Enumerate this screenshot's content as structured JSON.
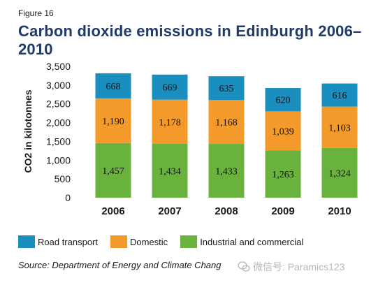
{
  "figure_label": "Figure 16",
  "chart_data": {
    "type": "bar",
    "stacked": true,
    "title": "Carbon dioxide emissions in Edinburgh 2006–2010",
    "ylabel": "CO2 in kilotonnes",
    "xlabel": "",
    "ylim": [
      0,
      3500
    ],
    "yticks": [
      0,
      500,
      1000,
      1500,
      2000,
      2500,
      3000,
      3500
    ],
    "ytick_labels": [
      "0",
      "500",
      "1,000",
      "1,500",
      "2,000",
      "2,500",
      "3,000",
      "3,500"
    ],
    "categories": [
      "2006",
      "2007",
      "2008",
      "2009",
      "2010"
    ],
    "series": [
      {
        "name": "Industrial and commercial",
        "color": "#6ab23e",
        "values": [
          1457,
          1434,
          1433,
          1263,
          1324
        ],
        "labels": [
          "1,457",
          "1,434",
          "1,433",
          "1,263",
          "1,324"
        ]
      },
      {
        "name": "Domestic",
        "color": "#f39a2a",
        "values": [
          1190,
          1178,
          1168,
          1039,
          1103
        ],
        "labels": [
          "1,190",
          "1,178",
          "1,168",
          "1,039",
          "1,103"
        ]
      },
      {
        "name": "Road transport",
        "color": "#1a8fbf",
        "values": [
          668,
          669,
          635,
          620,
          616
        ],
        "labels": [
          "668",
          "669",
          "635",
          "620",
          "616"
        ]
      }
    ],
    "legend_position": "bottom",
    "grid": false
  },
  "legend": {
    "road_transport": "Road transport",
    "domestic": "Domestic",
    "industrial": "Industrial and commercial"
  },
  "source": "Source: Department of Energy and Climate Chang",
  "watermark": {
    "text": "微信号: Paramics123",
    "icon": "wechat-icon"
  }
}
